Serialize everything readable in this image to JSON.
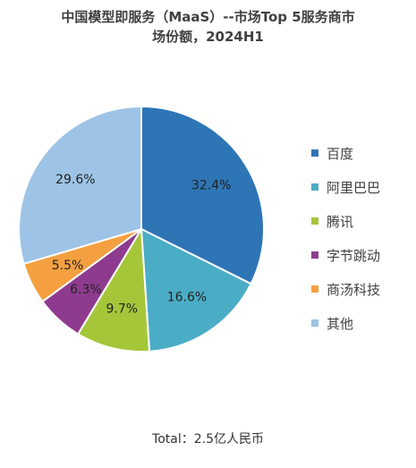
{
  "chart_data": {
    "type": "pie",
    "title_line1": "中国模型即服务（MaaS）--市场Top 5服务商市",
    "title_line2": "场份额，2024H1",
    "slices": [
      {
        "name": "百度",
        "value": 32.4,
        "label": "32.4%",
        "color": "#2E75B6"
      },
      {
        "name": "阿里巴巴",
        "value": 16.6,
        "label": "16.6%",
        "color": "#4BACC6"
      },
      {
        "name": "腾讯",
        "value": 9.7,
        "label": "9.7%",
        "color": "#A6C63A"
      },
      {
        "name": "字节跳动",
        "value": 6.3,
        "label": "6.3%",
        "color": "#8E3B8F"
      },
      {
        "name": "商汤科技",
        "value": 5.5,
        "label": "5.5%",
        "color": "#F4A040"
      },
      {
        "name": "其他",
        "value": 29.6,
        "label": "29.6%",
        "color": "#9DC3E6"
      }
    ],
    "legend_position": "right",
    "footer": "Total：2.5亿人民币"
  }
}
